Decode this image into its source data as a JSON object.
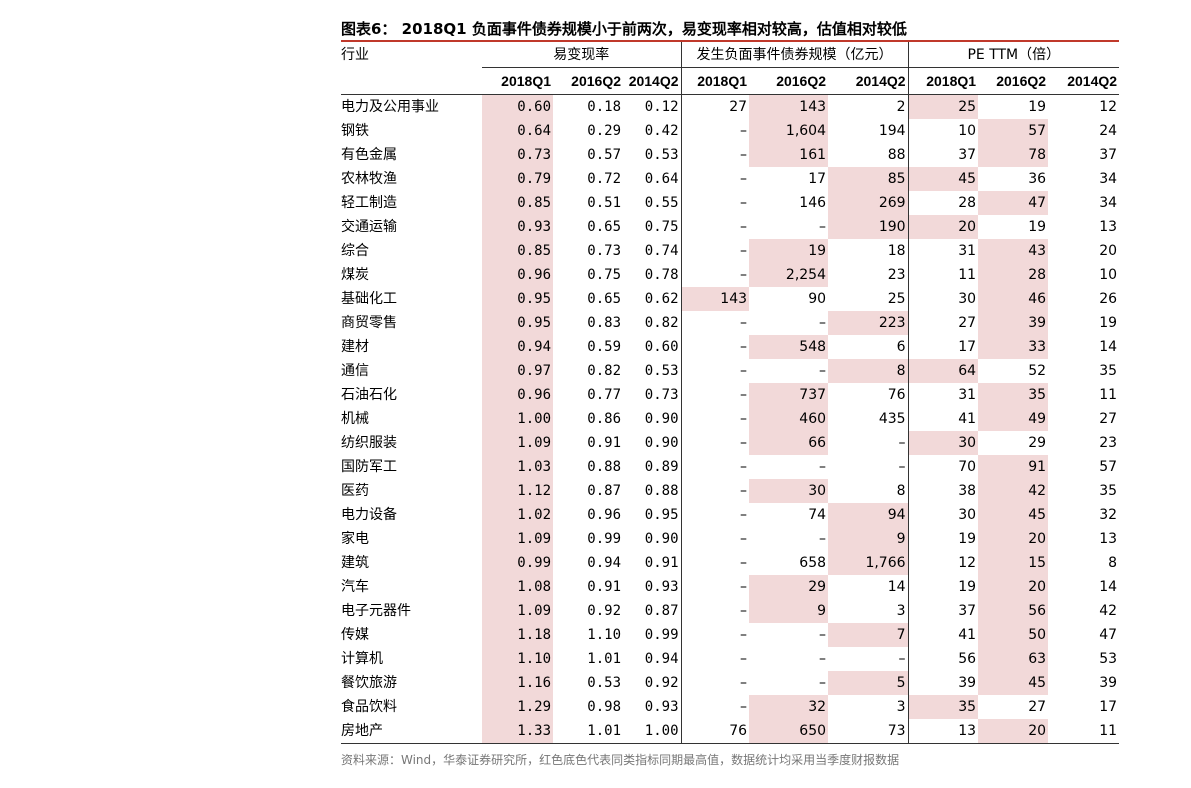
{
  "title": "图表6： 2018Q1 负面事件债券规模小于前两次，易变现率相对较高，估值相对较低",
  "header": {
    "industry": "行业",
    "groups": [
      "易变现率",
      "发生负面事件债券规模（亿元）",
      "PE TTM（倍）"
    ],
    "periods": [
      "2018Q1",
      "2016Q2",
      "2014Q2",
      "2018Q1",
      "2016Q2",
      "2014Q2",
      "2018Q1",
      "2016Q2",
      "2014Q2"
    ]
  },
  "colors": {
    "highlight": "#f2d9d9",
    "title_rule": "#c0392b"
  },
  "rows": [
    {
      "name": "电力及公用事业",
      "v": [
        "0.60",
        "0.18",
        "0.12",
        "27",
        "143",
        "2",
        "25",
        "19",
        "12"
      ],
      "hi": [
        0,
        4,
        6
      ]
    },
    {
      "name": "钢铁",
      "v": [
        "0.64",
        "0.29",
        "0.42",
        "–",
        "1,604",
        "194",
        "10",
        "57",
        "24"
      ],
      "hi": [
        0,
        4,
        7
      ]
    },
    {
      "name": "有色金属",
      "v": [
        "0.73",
        "0.57",
        "0.53",
        "–",
        "161",
        "88",
        "37",
        "78",
        "37"
      ],
      "hi": [
        0,
        4,
        7
      ]
    },
    {
      "name": "农林牧渔",
      "v": [
        "0.79",
        "0.72",
        "0.64",
        "–",
        "17",
        "85",
        "45",
        "36",
        "34"
      ],
      "hi": [
        0,
        5,
        6
      ]
    },
    {
      "name": "轻工制造",
      "v": [
        "0.85",
        "0.51",
        "0.55",
        "–",
        "146",
        "269",
        "28",
        "47",
        "34"
      ],
      "hi": [
        0,
        5,
        7
      ]
    },
    {
      "name": "交通运输",
      "v": [
        "0.93",
        "0.65",
        "0.75",
        "–",
        "–",
        "190",
        "20",
        "19",
        "13"
      ],
      "hi": [
        0,
        5,
        6
      ]
    },
    {
      "name": "综合",
      "v": [
        "0.85",
        "0.73",
        "0.74",
        "–",
        "19",
        "18",
        "31",
        "43",
        "20"
      ],
      "hi": [
        0,
        4,
        7
      ]
    },
    {
      "name": "煤炭",
      "v": [
        "0.96",
        "0.75",
        "0.78",
        "–",
        "2,254",
        "23",
        "11",
        "28",
        "10"
      ],
      "hi": [
        0,
        4,
        7
      ]
    },
    {
      "name": "基础化工",
      "v": [
        "0.95",
        "0.65",
        "0.62",
        "143",
        "90",
        "25",
        "30",
        "46",
        "26"
      ],
      "hi": [
        0,
        3,
        7
      ]
    },
    {
      "name": "商贸零售",
      "v": [
        "0.95",
        "0.83",
        "0.82",
        "–",
        "–",
        "223",
        "27",
        "39",
        "19"
      ],
      "hi": [
        0,
        5,
        7
      ]
    },
    {
      "name": "建材",
      "v": [
        "0.94",
        "0.59",
        "0.60",
        "–",
        "548",
        "6",
        "17",
        "33",
        "14"
      ],
      "hi": [
        0,
        4,
        7
      ]
    },
    {
      "name": "通信",
      "v": [
        "0.97",
        "0.82",
        "0.53",
        "–",
        "–",
        "8",
        "64",
        "52",
        "35"
      ],
      "hi": [
        0,
        5,
        6
      ]
    },
    {
      "name": "石油石化",
      "v": [
        "0.96",
        "0.77",
        "0.73",
        "–",
        "737",
        "76",
        "31",
        "35",
        "11"
      ],
      "hi": [
        0,
        4,
        7
      ]
    },
    {
      "name": "机械",
      "v": [
        "1.00",
        "0.86",
        "0.90",
        "–",
        "460",
        "435",
        "41",
        "49",
        "27"
      ],
      "hi": [
        0,
        4,
        7
      ]
    },
    {
      "name": "纺织服装",
      "v": [
        "1.09",
        "0.91",
        "0.90",
        "–",
        "66",
        "–",
        "30",
        "29",
        "23"
      ],
      "hi": [
        0,
        4,
        6
      ]
    },
    {
      "name": "国防军工",
      "v": [
        "1.03",
        "0.88",
        "0.89",
        "–",
        "–",
        "–",
        "70",
        "91",
        "57"
      ],
      "hi": [
        0,
        7
      ]
    },
    {
      "name": "医药",
      "v": [
        "1.12",
        "0.87",
        "0.88",
        "–",
        "30",
        "8",
        "38",
        "42",
        "35"
      ],
      "hi": [
        0,
        4,
        7
      ]
    },
    {
      "name": "电力设备",
      "v": [
        "1.02",
        "0.96",
        "0.95",
        "–",
        "74",
        "94",
        "30",
        "45",
        "32"
      ],
      "hi": [
        0,
        5,
        7
      ]
    },
    {
      "name": "家电",
      "v": [
        "1.09",
        "0.99",
        "0.90",
        "–",
        "–",
        "9",
        "19",
        "20",
        "13"
      ],
      "hi": [
        0,
        5,
        7
      ]
    },
    {
      "name": "建筑",
      "v": [
        "0.99",
        "0.94",
        "0.91",
        "–",
        "658",
        "1,766",
        "12",
        "15",
        "8"
      ],
      "hi": [
        0,
        5,
        7
      ]
    },
    {
      "name": "汽车",
      "v": [
        "1.08",
        "0.91",
        "0.93",
        "–",
        "29",
        "14",
        "19",
        "20",
        "14"
      ],
      "hi": [
        0,
        4,
        7
      ]
    },
    {
      "name": "电子元器件",
      "v": [
        "1.09",
        "0.92",
        "0.87",
        "–",
        "9",
        "3",
        "37",
        "56",
        "42"
      ],
      "hi": [
        0,
        4,
        7
      ]
    },
    {
      "name": "传媒",
      "v": [
        "1.18",
        "1.10",
        "0.99",
        "–",
        "–",
        "7",
        "41",
        "50",
        "47"
      ],
      "hi": [
        0,
        5,
        7
      ]
    },
    {
      "name": "计算机",
      "v": [
        "1.10",
        "1.01",
        "0.94",
        "–",
        "–",
        "–",
        "56",
        "63",
        "53"
      ],
      "hi": [
        0,
        7
      ]
    },
    {
      "name": "餐饮旅游",
      "v": [
        "1.16",
        "0.53",
        "0.92",
        "–",
        "–",
        "5",
        "39",
        "45",
        "39"
      ],
      "hi": [
        0,
        5,
        7
      ]
    },
    {
      "name": "食品饮料",
      "v": [
        "1.29",
        "0.98",
        "0.93",
        "–",
        "32",
        "3",
        "35",
        "27",
        "17"
      ],
      "hi": [
        0,
        4,
        6
      ]
    },
    {
      "name": "房地产",
      "v": [
        "1.33",
        "1.01",
        "1.00",
        "76",
        "650",
        "73",
        "13",
        "20",
        "11"
      ],
      "hi": [
        0,
        4,
        7
      ]
    }
  ],
  "source": "资料来源：Wind，华泰证券研究所，红色底色代表同类指标同期最高值，数据统计均采用当季度财报数据"
}
